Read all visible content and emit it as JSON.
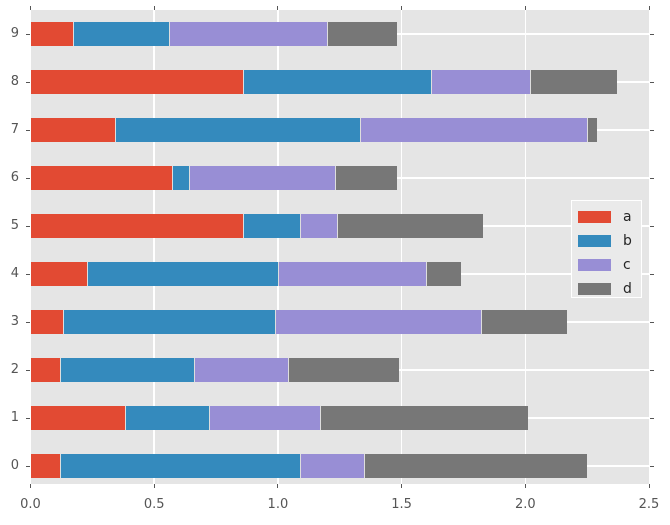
{
  "chart_data": {
    "type": "bar",
    "orientation": "horizontal",
    "stacked": true,
    "title": "",
    "xlabel": "",
    "ylabel": "",
    "categories": [
      "0",
      "1",
      "2",
      "3",
      "4",
      "5",
      "6",
      "7",
      "8",
      "9"
    ],
    "series": [
      {
        "name": "a",
        "color": "#E24A33",
        "values": [
          0.12,
          0.38,
          0.12,
          0.13,
          0.23,
          0.86,
          0.57,
          0.34,
          0.86,
          0.17
        ]
      },
      {
        "name": "b",
        "color": "#348ABD",
        "values": [
          0.97,
          0.34,
          0.54,
          0.86,
          0.77,
          0.23,
          0.07,
          0.99,
          0.76,
          0.39
        ]
      },
      {
        "name": "c",
        "color": "#988ED5",
        "values": [
          0.26,
          0.45,
          0.38,
          0.83,
          0.6,
          0.15,
          0.59,
          0.92,
          0.4,
          0.64
        ]
      },
      {
        "name": "d",
        "color": "#777777",
        "values": [
          0.9,
          0.84,
          0.45,
          0.35,
          0.14,
          0.59,
          0.25,
          0.04,
          0.35,
          0.28
        ]
      }
    ],
    "xlim": [
      0,
      2.5
    ],
    "x_ticks": [
      0.0,
      0.5,
      1.0,
      1.5,
      2.0,
      2.5
    ],
    "x_tick_labels": [
      "0.0",
      "0.5",
      "1.0",
      "1.5",
      "2.0",
      "2.5"
    ],
    "grid": "on",
    "legend_position": "center right",
    "style_colors": {
      "figure_bg": "#FFFFFF",
      "axes_bg": "#E5E5E5",
      "grid": "#FFFFFF",
      "tick_label": "#555555",
      "legend_bg": "#EAEAEA",
      "legend_border": "#FFFFFF",
      "legend_text": "#262626"
    }
  }
}
